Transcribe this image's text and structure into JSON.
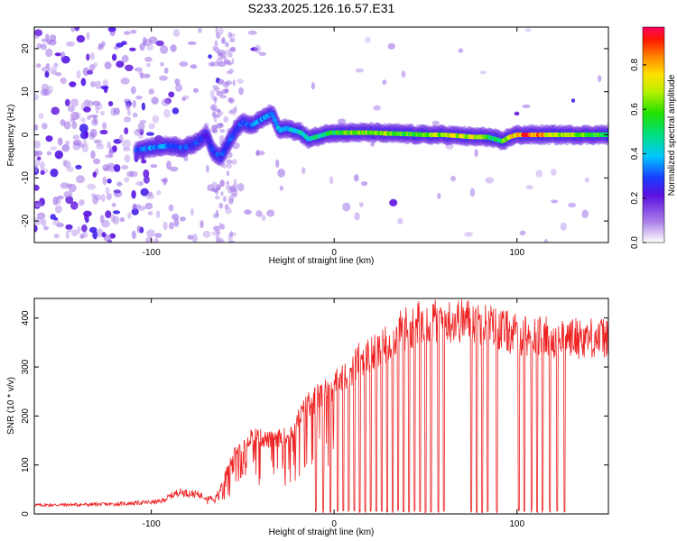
{
  "title": "S233.2025.126.16.57.E31",
  "colors": {
    "snr_line": "#ee2222",
    "spectrum_low": "#6a1bd8",
    "spectrum_high": "#e8102a"
  },
  "chart_data": [
    {
      "id": "spectrogram",
      "type": "heatmap",
      "title": "S233.2025.126.16.57.E31",
      "xlabel": "Height of straight line (km)",
      "ylabel": "Frequency (Hz)",
      "xlim": [
        -164,
        150
      ],
      "ylim": [
        -25,
        25
      ],
      "x_ticks": [
        -100,
        0,
        100
      ],
      "y_ticks": [
        -20,
        -10,
        0,
        10,
        20
      ],
      "colorbar": {
        "label": "Normalized spectral amplitude",
        "range": [
          0,
          0.97
        ],
        "ticks": [
          0.0,
          0.2,
          0.4,
          0.6,
          0.8
        ],
        "colormap": "rainbow (white, violet, blue, cyan, green, yellow, orange, red, magenta)"
      },
      "ridge": {
        "description": "main spectral ridge: frequency (Hz) vs height (km), with typical normalized amplitude",
        "x": [
          -108,
          -100,
          -90,
          -82,
          -76,
          -70,
          -66,
          -62,
          -58,
          -54,
          -50,
          -46,
          -42,
          -38,
          -34,
          -30,
          -26,
          -22,
          -18,
          -14,
          -10,
          -6,
          -2,
          4,
          10,
          20,
          30,
          40,
          50,
          60,
          70,
          76,
          80,
          84,
          88,
          92,
          96,
          100,
          106,
          112,
          120,
          130,
          140,
          148
        ],
        "y": [
          -3.5,
          -3,
          -2.5,
          -3,
          -2,
          0,
          -4,
          -5,
          -2,
          1,
          3,
          2,
          3,
          4,
          5,
          1,
          1.5,
          1,
          0.5,
          -1,
          -0.5,
          0,
          0.5,
          0.5,
          0.5,
          0.5,
          0.3,
          0.2,
          0,
          0,
          -0.3,
          -0.5,
          -0.5,
          -0.5,
          -1,
          -1.5,
          -0.5,
          0,
          0,
          0,
          0,
          0,
          0,
          0
        ],
        "amplitude": [
          0.3,
          0.35,
          0.35,
          0.3,
          0.3,
          0.25,
          0.3,
          0.3,
          0.3,
          0.3,
          0.3,
          0.3,
          0.35,
          0.35,
          0.35,
          0.4,
          0.4,
          0.4,
          0.45,
          0.45,
          0.5,
          0.5,
          0.55,
          0.6,
          0.65,
          0.65,
          0.65,
          0.6,
          0.6,
          0.7,
          0.7,
          0.7,
          0.65,
          0.55,
          0.5,
          0.55,
          0.75,
          0.8,
          0.95,
          0.85,
          0.7,
          0.65,
          0.6,
          0.55
        ]
      },
      "background": "scattered low-amplitude violet noise across all frequencies, densest for heights below -80 km, fading out near -60 km"
    },
    {
      "id": "snr",
      "type": "line",
      "xlabel": "Height of straight line (km)",
      "ylabel": "SNR (10 * v/v)",
      "xlim": [
        -164,
        150
      ],
      "ylim": [
        0,
        440
      ],
      "x_ticks": [
        -100,
        0,
        100
      ],
      "y_ticks": [
        0,
        100,
        200,
        300,
        400
      ],
      "envelope": {
        "description": "approximate mean SNR trend (noisy trace oscillates around this)",
        "x": [
          -164,
          -120,
          -95,
          -85,
          -75,
          -65,
          -55,
          -45,
          -35,
          -25,
          -15,
          -5,
          5,
          15,
          25,
          35,
          45,
          55,
          65,
          75,
          85,
          100,
          120,
          150
        ],
        "y": [
          18,
          20,
          25,
          45,
          40,
          30,
          120,
          160,
          150,
          160,
          220,
          250,
          275,
          320,
          330,
          370,
          390,
          395,
          395,
          395,
          385,
          365,
          360,
          360
        ]
      },
      "noise_amplitude_fraction": 0.12,
      "dropouts": {
        "description": "heights (km) of near-zero drops in the SNR trace",
        "x": [
          -10,
          -6,
          -2,
          2,
          5,
          8,
          11,
          14,
          17,
          20,
          23,
          26,
          29,
          32,
          35,
          38,
          41,
          44,
          47,
          50,
          53,
          57,
          60,
          75,
          78,
          81,
          84,
          89,
          101,
          104,
          108,
          111,
          114,
          118,
          122,
          126
        ]
      }
    }
  ]
}
